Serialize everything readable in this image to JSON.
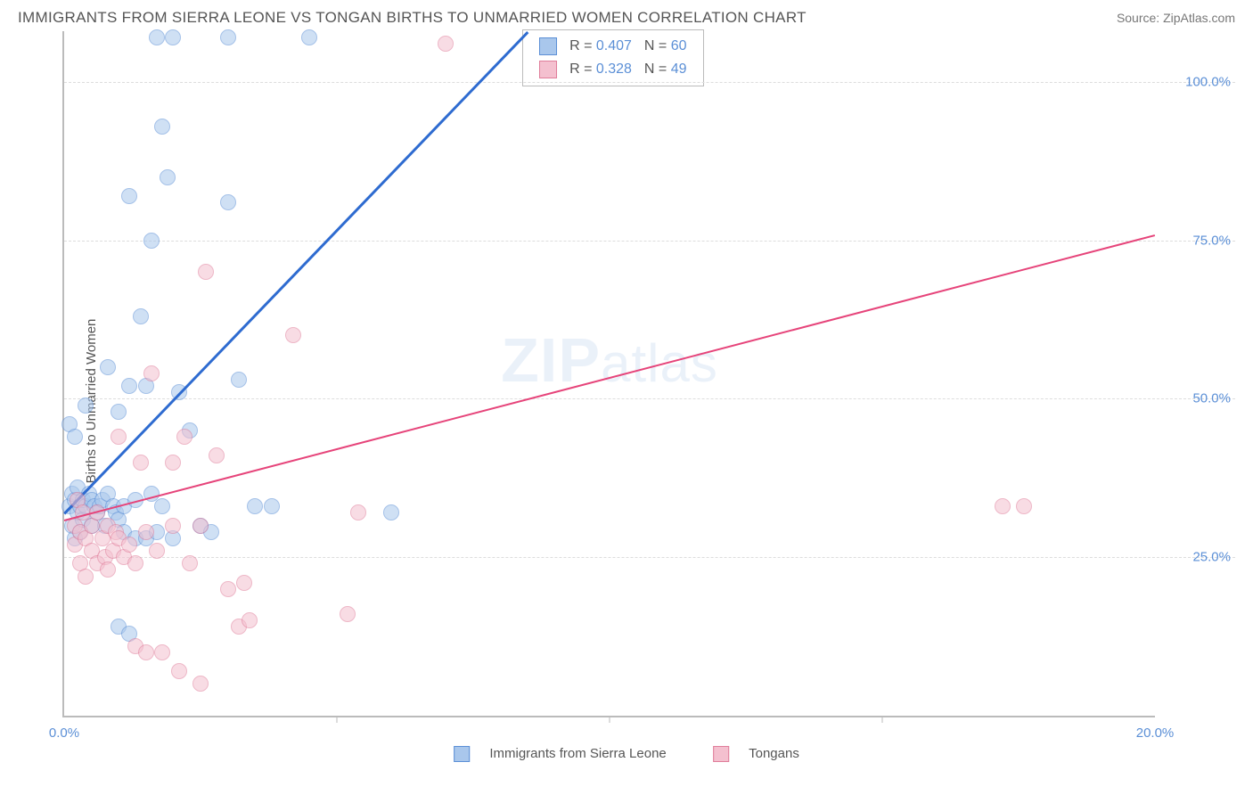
{
  "title": "IMMIGRANTS FROM SIERRA LEONE VS TONGAN BIRTHS TO UNMARRIED WOMEN CORRELATION CHART",
  "source": "Source: ZipAtlas.com",
  "y_axis_label": "Births to Unmarried Women",
  "watermark_bold": "ZIP",
  "watermark_light": "atlas",
  "chart": {
    "type": "scatter",
    "xlim": [
      0,
      20
    ],
    "ylim": [
      0,
      108
    ],
    "x_ticks": [
      0,
      20
    ],
    "x_tick_labels": [
      "0.0%",
      "20.0%"
    ],
    "x_minor_ticks": [
      5,
      10,
      15
    ],
    "y_ticks": [
      25,
      50,
      75,
      100
    ],
    "y_tick_labels": [
      "25.0%",
      "50.0%",
      "75.0%",
      "100.0%"
    ],
    "background_color": "#ffffff",
    "grid_color": "#dddddd",
    "axis_color": "#bbbbbb",
    "tick_label_color": "#5b8fd6",
    "point_radius": 9,
    "point_opacity": 0.55,
    "point_border_width": 1.5,
    "series": [
      {
        "name": "Immigrants from Sierra Leone",
        "color_fill": "#a9c7ec",
        "color_stroke": "#5b8fd6",
        "reg_color": "#2e6bd0",
        "reg_width": 2.5,
        "R": "0.407",
        "N": "60",
        "reg_start": {
          "x": 0,
          "y": 32
        },
        "reg_end": {
          "x": 8.5,
          "y": 108
        },
        "points": [
          {
            "x": 0.1,
            "y": 46
          },
          {
            "x": 0.1,
            "y": 33
          },
          {
            "x": 0.15,
            "y": 30
          },
          {
            "x": 0.15,
            "y": 35
          },
          {
            "x": 0.2,
            "y": 28
          },
          {
            "x": 0.2,
            "y": 34
          },
          {
            "x": 0.2,
            "y": 44
          },
          {
            "x": 0.25,
            "y": 32
          },
          {
            "x": 0.25,
            "y": 36
          },
          {
            "x": 0.3,
            "y": 33
          },
          {
            "x": 0.3,
            "y": 29
          },
          {
            "x": 0.35,
            "y": 34
          },
          {
            "x": 0.35,
            "y": 31
          },
          {
            "x": 0.4,
            "y": 33
          },
          {
            "x": 0.4,
            "y": 49
          },
          {
            "x": 0.45,
            "y": 35
          },
          {
            "x": 0.5,
            "y": 30
          },
          {
            "x": 0.5,
            "y": 34
          },
          {
            "x": 0.55,
            "y": 33
          },
          {
            "x": 0.6,
            "y": 32
          },
          {
            "x": 0.65,
            "y": 33
          },
          {
            "x": 0.7,
            "y": 34
          },
          {
            "x": 0.75,
            "y": 30
          },
          {
            "x": 0.8,
            "y": 35
          },
          {
            "x": 0.8,
            "y": 55
          },
          {
            "x": 0.9,
            "y": 33
          },
          {
            "x": 0.95,
            "y": 32
          },
          {
            "x": 1.0,
            "y": 31
          },
          {
            "x": 1.0,
            "y": 48
          },
          {
            "x": 1.0,
            "y": 14
          },
          {
            "x": 1.1,
            "y": 33
          },
          {
            "x": 1.1,
            "y": 29
          },
          {
            "x": 1.2,
            "y": 82
          },
          {
            "x": 1.2,
            "y": 52
          },
          {
            "x": 1.2,
            "y": 13
          },
          {
            "x": 1.3,
            "y": 28
          },
          {
            "x": 1.3,
            "y": 34
          },
          {
            "x": 1.4,
            "y": 63
          },
          {
            "x": 1.5,
            "y": 52
          },
          {
            "x": 1.5,
            "y": 28
          },
          {
            "x": 1.6,
            "y": 35
          },
          {
            "x": 1.6,
            "y": 75
          },
          {
            "x": 1.7,
            "y": 29
          },
          {
            "x": 1.7,
            "y": 107
          },
          {
            "x": 1.8,
            "y": 93
          },
          {
            "x": 1.8,
            "y": 33
          },
          {
            "x": 1.9,
            "y": 85
          },
          {
            "x": 2.0,
            "y": 28
          },
          {
            "x": 2.0,
            "y": 107
          },
          {
            "x": 2.1,
            "y": 51
          },
          {
            "x": 2.3,
            "y": 45
          },
          {
            "x": 2.5,
            "y": 30
          },
          {
            "x": 2.7,
            "y": 29
          },
          {
            "x": 3.0,
            "y": 107
          },
          {
            "x": 3.0,
            "y": 81
          },
          {
            "x": 3.2,
            "y": 53
          },
          {
            "x": 3.5,
            "y": 33
          },
          {
            "x": 3.8,
            "y": 33
          },
          {
            "x": 6.0,
            "y": 32
          },
          {
            "x": 4.5,
            "y": 107
          }
        ]
      },
      {
        "name": "Tongans",
        "color_fill": "#f4c0cf",
        "color_stroke": "#e07d9a",
        "reg_color": "#e6447a",
        "reg_width": 2,
        "R": "0.328",
        "N": "49",
        "reg_start": {
          "x": 0,
          "y": 31
        },
        "reg_end": {
          "x": 20,
          "y": 76
        },
        "points": [
          {
            "x": 0.2,
            "y": 30
          },
          {
            "x": 0.2,
            "y": 27
          },
          {
            "x": 0.25,
            "y": 34
          },
          {
            "x": 0.3,
            "y": 24
          },
          {
            "x": 0.3,
            "y": 29
          },
          {
            "x": 0.35,
            "y": 32
          },
          {
            "x": 0.4,
            "y": 28
          },
          {
            "x": 0.4,
            "y": 22
          },
          {
            "x": 0.5,
            "y": 26
          },
          {
            "x": 0.5,
            "y": 30
          },
          {
            "x": 0.6,
            "y": 24
          },
          {
            "x": 0.6,
            "y": 32
          },
          {
            "x": 0.7,
            "y": 28
          },
          {
            "x": 0.75,
            "y": 25
          },
          {
            "x": 0.8,
            "y": 30
          },
          {
            "x": 0.8,
            "y": 23
          },
          {
            "x": 0.9,
            "y": 26
          },
          {
            "x": 0.95,
            "y": 29
          },
          {
            "x": 1.0,
            "y": 28
          },
          {
            "x": 1.0,
            "y": 44
          },
          {
            "x": 1.1,
            "y": 25
          },
          {
            "x": 1.2,
            "y": 27
          },
          {
            "x": 1.3,
            "y": 24
          },
          {
            "x": 1.3,
            "y": 11
          },
          {
            "x": 1.4,
            "y": 40
          },
          {
            "x": 1.5,
            "y": 10
          },
          {
            "x": 1.5,
            "y": 29
          },
          {
            "x": 1.6,
            "y": 54
          },
          {
            "x": 1.7,
            "y": 26
          },
          {
            "x": 1.8,
            "y": 10
          },
          {
            "x": 2.0,
            "y": 30
          },
          {
            "x": 2.0,
            "y": 40
          },
          {
            "x": 2.1,
            "y": 7
          },
          {
            "x": 2.2,
            "y": 44
          },
          {
            "x": 2.3,
            "y": 24
          },
          {
            "x": 2.5,
            "y": 30
          },
          {
            "x": 2.5,
            "y": 5
          },
          {
            "x": 2.6,
            "y": 70
          },
          {
            "x": 2.8,
            "y": 41
          },
          {
            "x": 3.0,
            "y": 20
          },
          {
            "x": 3.2,
            "y": 14
          },
          {
            "x": 3.3,
            "y": 21
          },
          {
            "x": 3.4,
            "y": 15
          },
          {
            "x": 4.2,
            "y": 60
          },
          {
            "x": 5.2,
            "y": 16
          },
          {
            "x": 5.4,
            "y": 32
          },
          {
            "x": 7.0,
            "y": 106
          },
          {
            "x": 17.2,
            "y": 33
          },
          {
            "x": 17.6,
            "y": 33
          }
        ]
      }
    ]
  },
  "legend_top": {
    "rows": [
      {
        "r_label": "R =",
        "n_label": "N ="
      },
      {
        "r_label": "R =",
        "n_label": "N ="
      }
    ]
  },
  "bottom_legend": {
    "items": [
      "Immigrants from Sierra Leone",
      "Tongans"
    ]
  }
}
